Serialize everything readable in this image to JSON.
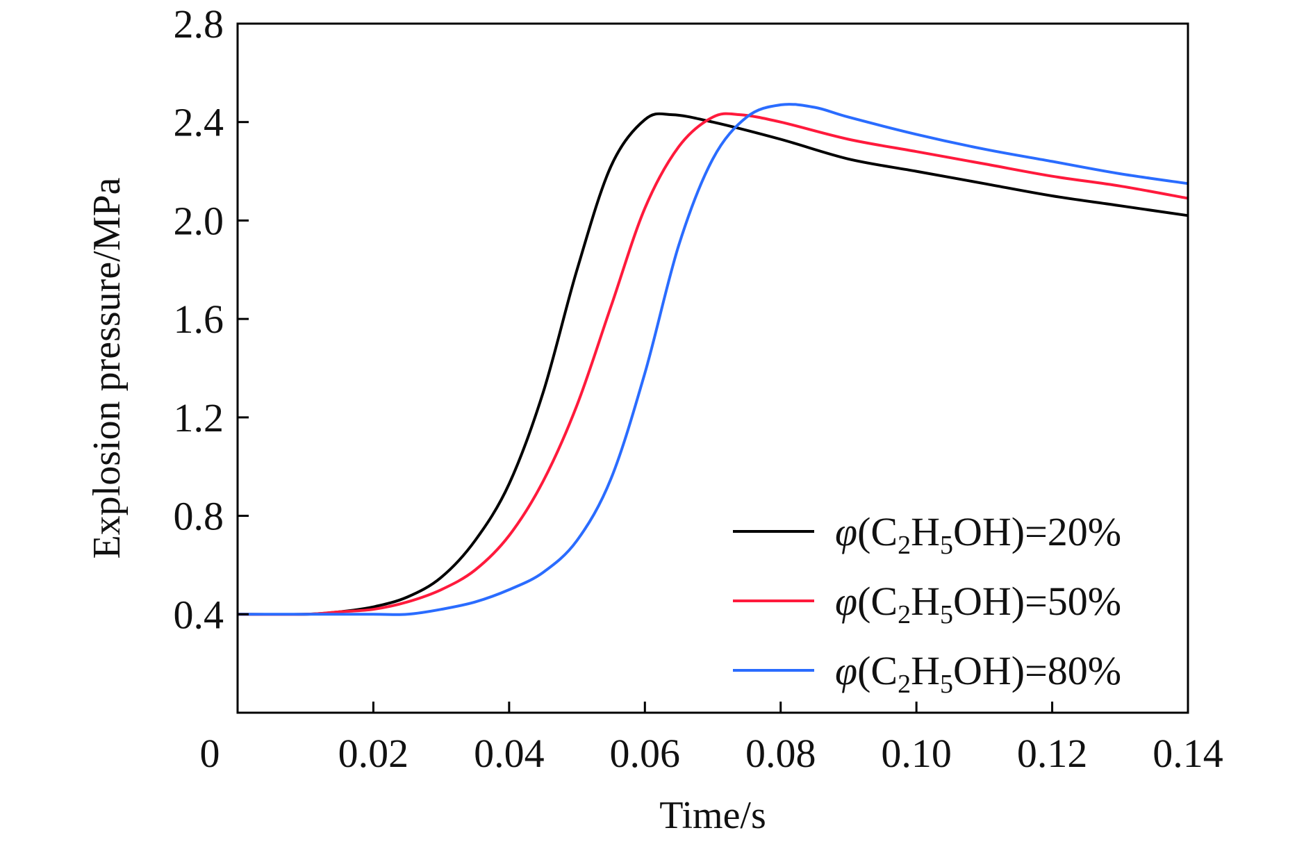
{
  "chart_data": {
    "type": "line",
    "title": "",
    "xlabel": "Time/s",
    "ylabel": "Explosion pressure/MPa",
    "xlim": [
      0,
      0.14
    ],
    "ylim": [
      0,
      2.8
    ],
    "origin_label": "0",
    "x_ticks": [
      0.02,
      0.04,
      0.06,
      0.08,
      0.1,
      0.12,
      0.14
    ],
    "x_tick_labels": [
      "0.02",
      "0.04",
      "0.06",
      "0.08",
      "0.10",
      "0.12",
      "0.14"
    ],
    "y_ticks": [
      0.4,
      0.8,
      1.2,
      1.6,
      2.0,
      2.4,
      2.8
    ],
    "y_tick_labels": [
      "0.4",
      "0.8",
      "1.2",
      "1.6",
      "2.0",
      "2.4",
      "2.8"
    ],
    "grid": false,
    "legend_position": "bottom-right",
    "series": [
      {
        "name": "φ(C2H5OH)=20%",
        "legend": {
          "symbol": "φ",
          "prefix": "(C",
          "sub1": "2",
          "mid": "H",
          "sub2": "5",
          "suffix": "OH)=20%"
        },
        "color": "#000000",
        "x": [
          0,
          0.01,
          0.015,
          0.02,
          0.025,
          0.03,
          0.035,
          0.04,
          0.045,
          0.05,
          0.055,
          0.06,
          0.064,
          0.07,
          0.08,
          0.09,
          0.1,
          0.11,
          0.12,
          0.13,
          0.14
        ],
        "y": [
          0.4,
          0.4,
          0.41,
          0.43,
          0.47,
          0.55,
          0.7,
          0.93,
          1.3,
          1.8,
          2.22,
          2.41,
          2.43,
          2.4,
          2.33,
          2.25,
          2.2,
          2.15,
          2.1,
          2.06,
          2.02
        ]
      },
      {
        "name": "φ(C2H5OH)=50%",
        "legend": {
          "symbol": "φ",
          "prefix": "(C",
          "sub1": "2",
          "mid": "H",
          "sub2": "5",
          "suffix": "OH)=50%"
        },
        "color": "#ff1a3c",
        "x": [
          0,
          0.01,
          0.015,
          0.02,
          0.025,
          0.03,
          0.035,
          0.04,
          0.045,
          0.05,
          0.055,
          0.06,
          0.065,
          0.07,
          0.074,
          0.08,
          0.09,
          0.1,
          0.11,
          0.12,
          0.13,
          0.14
        ],
        "y": [
          0.4,
          0.4,
          0.41,
          0.42,
          0.45,
          0.5,
          0.58,
          0.72,
          0.94,
          1.25,
          1.65,
          2.05,
          2.3,
          2.42,
          2.43,
          2.4,
          2.33,
          2.28,
          2.23,
          2.18,
          2.14,
          2.09
        ]
      },
      {
        "name": "φ(C2H5OH)=80%",
        "legend": {
          "symbol": "φ",
          "prefix": "(C",
          "sub1": "2",
          "mid": "H",
          "sub2": "5",
          "suffix": "OH)=80%"
        },
        "color": "#2a6cff",
        "x": [
          0,
          0.01,
          0.02,
          0.025,
          0.03,
          0.035,
          0.04,
          0.045,
          0.05,
          0.055,
          0.06,
          0.065,
          0.07,
          0.075,
          0.08,
          0.085,
          0.09,
          0.1,
          0.11,
          0.12,
          0.13,
          0.14
        ],
        "y": [
          0.4,
          0.4,
          0.4,
          0.4,
          0.42,
          0.45,
          0.5,
          0.57,
          0.7,
          0.95,
          1.38,
          1.9,
          2.25,
          2.42,
          2.47,
          2.46,
          2.42,
          2.35,
          2.29,
          2.24,
          2.19,
          2.15
        ]
      }
    ]
  }
}
